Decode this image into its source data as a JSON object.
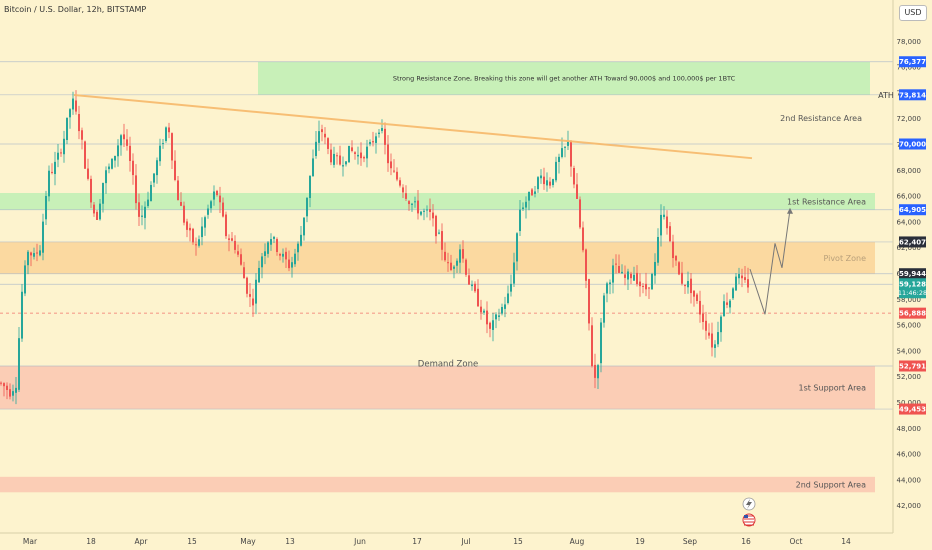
{
  "header": {
    "title": "Bitcoin / U.S. Dollar, 12h, BITSTAMP",
    "currency": "USD"
  },
  "colors": {
    "up": "#26a69a",
    "down": "#ef5350",
    "trend": "#f7b96b",
    "green_zone": "#c8f0b8",
    "orange_zone": "#fbd9a0",
    "red_zone": "#fbcdb5"
  },
  "chart_data": {
    "type": "candlestick",
    "title": "Bitcoin / U.S. Dollar, 12h, BITSTAMP",
    "y_axis": {
      "ticks": [
        "42,000",
        "44,000",
        "46,000",
        "48,000",
        "50,000",
        "52,000",
        "54,000",
        "56,000",
        "58,000",
        "60,000",
        "62,000",
        "64,000",
        "66,000",
        "68,000",
        "70,000",
        "72,000",
        "74,000",
        "76,000",
        "78,000"
      ],
      "ylim": [
        41000,
        80000
      ]
    },
    "x_axis": {
      "labels": [
        "Mar",
        "18",
        "Apr",
        "15",
        "May",
        "13",
        "Jun",
        "17",
        "Jul",
        "15",
        "Aug",
        "19",
        "Sep",
        "16",
        "Oct",
        "14"
      ]
    },
    "price_labels": [
      {
        "text": "76,377",
        "price": 76377,
        "color": "#2962ff"
      },
      {
        "text": "73,814",
        "price": 73814,
        "color": "#2962ff",
        "side_label": "ATH"
      },
      {
        "text": "70,000",
        "price": 70000,
        "color": "#2962ff"
      },
      {
        "text": "64,905",
        "price": 64905,
        "color": "#2962ff"
      },
      {
        "text": "62,407",
        "price": 62407,
        "color": "#2a2e39"
      },
      {
        "text": "59,944",
        "price": 59944,
        "color": "#2a2e39"
      },
      {
        "text": "59,128",
        "price": 59128,
        "color": "#26a69a",
        "sub": "11:46:28"
      },
      {
        "text": "56,888",
        "price": 56888,
        "color": "#ef5350"
      },
      {
        "text": "52,791",
        "price": 52791,
        "color": "#ef5350"
      },
      {
        "text": "49,453",
        "price": 49453,
        "color": "#ef5350"
      }
    ],
    "zones": [
      {
        "name": "Strong Resistance Zone",
        "low": 73814,
        "high": 76377,
        "color": "green",
        "label": "Strong Resistance Zone, Breaking this zone will get another ATH Toward 90,000$ and  100,000$ per 1BTC"
      },
      {
        "name": "1st Resistance Area",
        "low": 64905,
        "high": 66200,
        "color": "green",
        "label": "1st Resistance Area"
      },
      {
        "name": "Pivot Zone",
        "low": 59944,
        "high": 62407,
        "color": "orange",
        "label": "Pivot Zone"
      },
      {
        "name": "1st Support Area",
        "low": 49453,
        "high": 52791,
        "color": "red",
        "label": "1st Support Area"
      },
      {
        "name": "2nd Support Area",
        "low": 43000,
        "high": 44200,
        "color": "red",
        "label": "2nd Support Area"
      }
    ],
    "annotations": [
      {
        "text": "2nd Resistance Area",
        "price": 72000
      },
      {
        "text": "Demand Zone",
        "price": 53000
      }
    ],
    "ohlc_sample": [
      [
        "Mar 1",
        51000,
        61800,
        50600,
        61500
      ],
      [
        "Mar 13",
        68000,
        73800,
        67000,
        71200
      ],
      [
        "Apr 1",
        70000,
        71500,
        64500,
        65500
      ],
      [
        "Apr 12",
        70500,
        72500,
        66000,
        66800
      ],
      [
        "May 1",
        60500,
        61000,
        56500,
        58200
      ],
      [
        "May 20",
        66500,
        72000,
        66000,
        70000
      ],
      [
        "Jun 7",
        70800,
        72000,
        69000,
        69500
      ],
      [
        "Jul 5",
        56500,
        57500,
        53500,
        56000
      ],
      [
        "Jul 29",
        69500,
        70000,
        66000,
        66500
      ],
      [
        "Aug 5",
        58000,
        58500,
        49500,
        54000
      ],
      [
        "Aug 23",
        61000,
        64900,
        60500,
        64200
      ],
      [
        "Sep 6",
        56000,
        56500,
        53000,
        54000
      ],
      [
        "Sep 19",
        59500,
        60300,
        59000,
        59128
      ]
    ]
  },
  "icons": {
    "lightning": "lightning-icon",
    "flag": "us-flag-icon"
  }
}
